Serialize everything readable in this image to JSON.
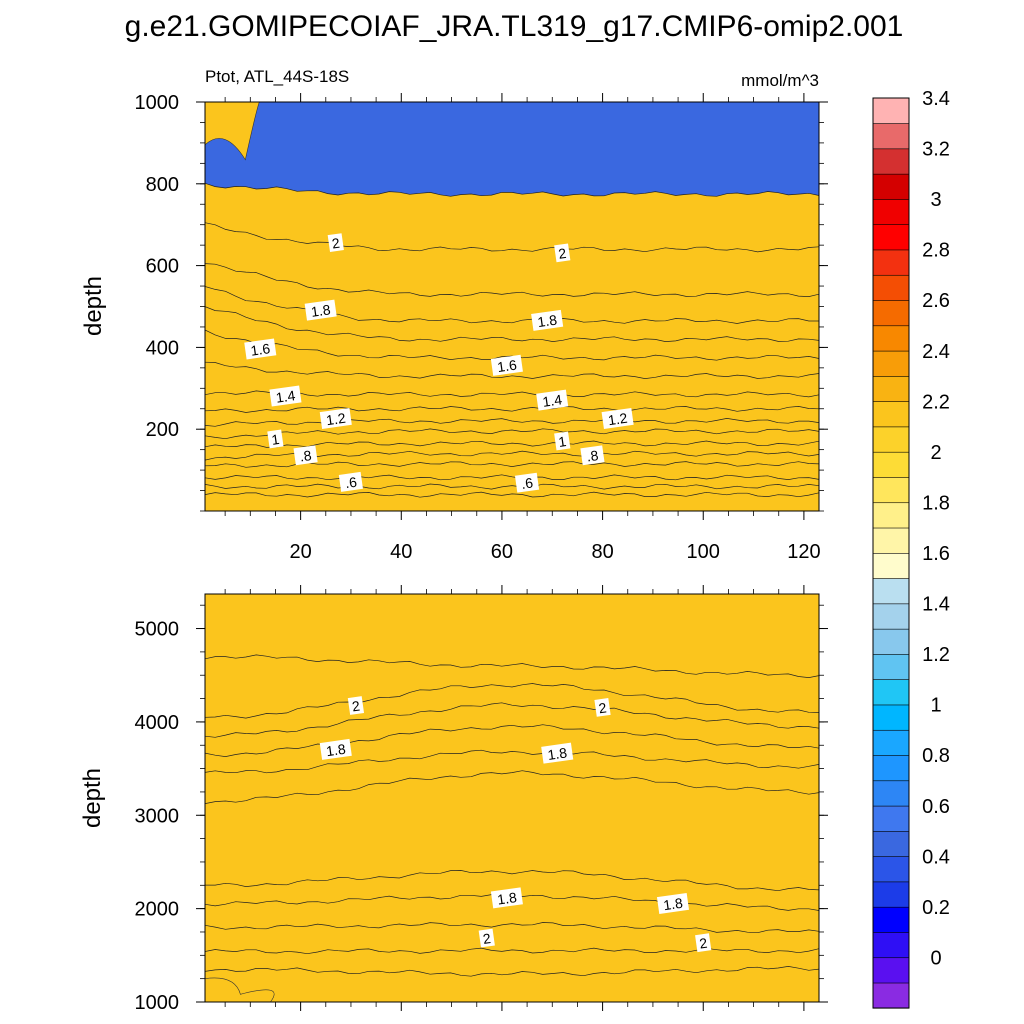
{
  "figure": {
    "title": "g.e21.GOMIPECOIAF_JRA.TL319_g17.CMIP6-omip2.001",
    "left_subtitle": "Ptot, ATL_44S-18S",
    "right_subtitle": "mmol/m^3"
  },
  "chart_data": [
    {
      "type": "heatmap",
      "panel": "upper",
      "variable": "Ptot",
      "region": "ATL_44S-18S",
      "units": "mmol/m^3",
      "xlabel": "",
      "ylabel": "depth",
      "xlim": [
        1,
        123
      ],
      "ylim": [
        1000,
        0
      ],
      "x_ticks": [
        20,
        40,
        60,
        80,
        100,
        120
      ],
      "x_tick_labels": [
        "20",
        "40",
        "60",
        "80",
        "100",
        "120"
      ],
      "y_ticks": [
        200,
        400,
        600,
        800,
        1000
      ],
      "y_tick_labels": [
        "200",
        "400",
        "600",
        "800",
        "1000"
      ],
      "contour_depths": [
        {
          "level": 0.5,
          "depth": [
            40,
            40
          ]
        },
        {
          "level": 0.6,
          "depth": [
            60,
            60
          ]
        },
        {
          "level": 0.7,
          "depth": [
            82,
            82
          ]
        },
        {
          "level": 0.8,
          "depth": [
            110,
            115
          ]
        },
        {
          "level": 0.9,
          "depth": [
            130,
            140
          ]
        },
        {
          "level": 1.0,
          "depth": [
            155,
            165
          ]
        },
        {
          "level": 1.1,
          "depth": [
            180,
            195
          ]
        },
        {
          "level": 1.2,
          "depth": [
            210,
            220
          ]
        },
        {
          "level": 1.3,
          "depth": [
            245,
            250
          ]
        },
        {
          "level": 1.4,
          "depth": [
            290,
            285
          ]
        },
        {
          "level": 1.5,
          "depth": [
            360,
            330
          ]
        },
        {
          "level": 1.6,
          "depth": [
            440,
            375
          ]
        },
        {
          "level": 1.7,
          "depth": [
            500,
            420
          ]
        },
        {
          "level": 1.8,
          "depth": [
            550,
            465
          ]
        },
        {
          "level": 1.9,
          "depth": [
            610,
            530
          ]
        },
        {
          "level": 2.0,
          "depth": [
            700,
            640
          ]
        },
        {
          "level": 2.1,
          "depth": [
            800,
            775
          ]
        }
      ],
      "contour_labels": [
        {
          "text": ".6",
          "x": 30,
          "depth": 70
        },
        {
          "text": ".6",
          "x": 65,
          "depth": 68
        },
        {
          "text": ".8",
          "x": 21,
          "depth": 135
        },
        {
          "text": ".8",
          "x": 78,
          "depth": 135
        },
        {
          "text": "1",
          "x": 15,
          "depth": 175
        },
        {
          "text": "1",
          "x": 72,
          "depth": 170
        },
        {
          "text": "1.2",
          "x": 27,
          "depth": 225
        },
        {
          "text": "1.2",
          "x": 83,
          "depth": 225
        },
        {
          "text": "1.4",
          "x": 17,
          "depth": 280
        },
        {
          "text": "1.4",
          "x": 70,
          "depth": 270
        },
        {
          "text": "1.6",
          "x": 12,
          "depth": 395
        },
        {
          "text": "1.6",
          "x": 61,
          "depth": 355
        },
        {
          "text": "1.8",
          "x": 24,
          "depth": 490
        },
        {
          "text": "1.8",
          "x": 69,
          "depth": 465
        },
        {
          "text": "2",
          "x": 27,
          "depth": 655
        },
        {
          "text": "2",
          "x": 72,
          "depth": 630
        }
      ],
      "local_maximum_region": {
        "level": 2.2,
        "x_range": [
          1,
          11
        ],
        "depth_range": [
          920,
          1000
        ]
      }
    },
    {
      "type": "heatmap",
      "panel": "lower",
      "variable": "Ptot",
      "region": "ATL_44S-18S",
      "units": "mmol/m^3",
      "xlabel": "",
      "ylabel": "depth",
      "xlim": [
        1,
        123
      ],
      "ylim": [
        5370,
        1000
      ],
      "y_ticks": [
        1000,
        2000,
        3000,
        4000,
        5000
      ],
      "y_tick_labels": [
        "1000",
        "2000",
        "3000",
        "4000",
        "5000"
      ],
      "contour_depths": [
        {
          "level": 2.1,
          "depth": [
            1350,
            1300,
            1360
          ]
        },
        {
          "level": 2.0,
          "depth": [
            1540,
            1550,
            1550
          ]
        },
        {
          "level": 1.9,
          "depth": [
            1800,
            1830,
            1750
          ]
        },
        {
          "level": 1.8,
          "depth": [
            2050,
            2140,
            2000
          ]
        },
        {
          "level": 1.7,
          "depth": [
            2250,
            2400,
            2200
          ]
        },
        {
          "level": 1.6,
          "depth": [
            3150,
            3450,
            3250
          ]
        },
        {
          "level": 1.7,
          "depth": [
            3450,
            3680,
            3520
          ]
        },
        {
          "level": 1.8,
          "depth": [
            3650,
            3950,
            3720
          ]
        },
        {
          "level": 1.9,
          "depth": [
            3850,
            4180,
            3950
          ]
        },
        {
          "level": 2.0,
          "depth": [
            4050,
            4400,
            4100
          ]
        },
        {
          "level": 2.1,
          "depth": [
            4700,
            4600,
            4500
          ]
        }
      ],
      "contour_labels": [
        {
          "text": "2",
          "x": 57,
          "depth": 1680
        },
        {
          "text": "2",
          "x": 100,
          "depth": 1630
        },
        {
          "text": "1.8",
          "x": 61,
          "depth": 2110
        },
        {
          "text": "1.8",
          "x": 94,
          "depth": 2050
        },
        {
          "text": "1.8",
          "x": 27,
          "depth": 3700
        },
        {
          "text": "1.8",
          "x": 71,
          "depth": 3660
        },
        {
          "text": "2",
          "x": 31,
          "depth": 4170
        },
        {
          "text": "2",
          "x": 80,
          "depth": 4150
        }
      ],
      "local_maximum_region": {
        "level": 2.2,
        "x_range": [
          1,
          14
        ],
        "depth_range": [
          1000,
          1250
        ]
      }
    }
  ],
  "colorbar": {
    "min": -0.1,
    "step": 0.1,
    "labels": [
      "0",
      "0.2",
      "0.4",
      "0.6",
      "0.8",
      "1",
      "1.2",
      "1.4",
      "1.6",
      "1.8",
      "2",
      "2.2",
      "2.4",
      "2.6",
      "2.8",
      "3",
      "3.2",
      "3.4"
    ],
    "label_values": [
      0,
      0.2,
      0.4,
      0.6,
      0.8,
      1.0,
      1.2,
      1.4,
      1.6,
      1.8,
      2.0,
      2.2,
      2.4,
      2.6,
      2.8,
      3.0,
      3.2,
      3.4
    ],
    "colors": [
      "#8a2be2",
      "#5a10f0",
      "#2f0ff5",
      "#0000ff",
      "#1c3ce8",
      "#2b55e8",
      "#3a68e0",
      "#3f78ef",
      "#2d86f5",
      "#1e96ff",
      "#1aa7ff",
      "#00b6ff",
      "#20c6f5",
      "#60c4f2",
      "#88c8ed",
      "#a4d2ec",
      "#badff0",
      "#fffccc",
      "#fff5a8",
      "#fff08a",
      "#ffe65c",
      "#fddc36",
      "#fcd22a",
      "#fbc51d",
      "#f9b312",
      "#f89d08",
      "#f88800",
      "#f56b00",
      "#f44e04",
      "#f33110",
      "#ff0000",
      "#f00000",
      "#d40000",
      "#d43030",
      "#e86a6a",
      "#ffb3b3"
    ]
  }
}
